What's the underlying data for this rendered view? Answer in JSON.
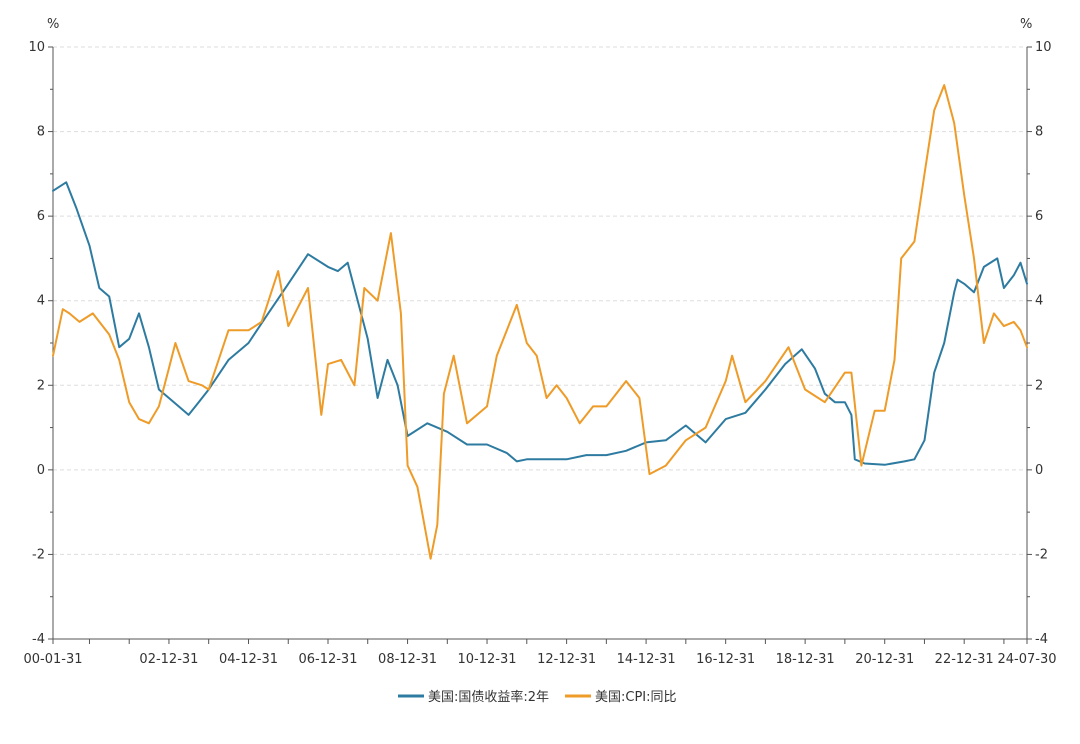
{
  "chart_data": {
    "type": "line",
    "title": "",
    "left_axis": {
      "unit": "%",
      "range": [
        -4,
        10
      ],
      "ticks": [
        "-4",
        "-2",
        "0",
        "2",
        "4",
        "6",
        "8",
        "10"
      ]
    },
    "right_axis": {
      "unit": "%",
      "range": [
        -4,
        10
      ],
      "ticks": [
        "-4",
        "-2",
        "0",
        "2",
        "4",
        "6",
        "8",
        "10"
      ]
    },
    "x_axis": {
      "type": "date",
      "range": [
        "2000-01-31",
        "2024-07-30"
      ],
      "tick_labels": [
        "00-01-31",
        "02-12-31",
        "04-12-31",
        "06-12-31",
        "08-12-31",
        "10-12-31",
        "12-12-31",
        "14-12-31",
        "16-12-31",
        "18-12-31",
        "20-12-31",
        "22-12-31",
        "24-07-30"
      ],
      "tick_dates": [
        "2000-01-31",
        "2002-12-31",
        "2004-12-31",
        "2006-12-31",
        "2008-12-31",
        "2010-12-31",
        "2012-12-31",
        "2014-12-31",
        "2016-12-31",
        "2018-12-31",
        "2020-12-31",
        "2022-12-31",
        "2024-07-30"
      ]
    },
    "grid": "horizontal dashed",
    "legend_position": "bottom-center",
    "series": [
      {
        "name": "美国:国债收益率:2年",
        "color": "#2e7ba1",
        "axis": "left",
        "x": [
          "2000-01-31",
          "2000-05-31",
          "2000-08-31",
          "2000-12-31",
          "2001-03-31",
          "2001-06-30",
          "2001-09-30",
          "2001-12-31",
          "2002-03-31",
          "2002-06-30",
          "2002-09-30",
          "2002-12-31",
          "2003-03-31",
          "2003-06-30",
          "2003-09-30",
          "2003-12-31",
          "2004-06-30",
          "2004-12-31",
          "2005-06-30",
          "2005-12-31",
          "2006-06-30",
          "2006-12-31",
          "2007-03-31",
          "2007-06-30",
          "2007-09-30",
          "2007-12-31",
          "2008-03-31",
          "2008-06-30",
          "2008-09-30",
          "2008-12-31",
          "2009-06-30",
          "2009-12-31",
          "2010-06-30",
          "2010-12-31",
          "2011-06-30",
          "2011-09-30",
          "2011-12-31",
          "2012-12-31",
          "2013-06-30",
          "2013-12-31",
          "2014-06-30",
          "2014-12-31",
          "2015-06-30",
          "2015-12-31",
          "2016-06-30",
          "2016-12-31",
          "2017-06-30",
          "2017-12-31",
          "2018-06-30",
          "2018-11-30",
          "2019-03-31",
          "2019-06-30",
          "2019-09-30",
          "2019-12-31",
          "2020-02-29",
          "2020-03-31",
          "2020-06-30",
          "2020-12-31",
          "2021-06-30",
          "2021-09-30",
          "2021-12-31",
          "2022-03-31",
          "2022-06-30",
          "2022-09-30",
          "2022-10-31",
          "2022-12-31",
          "2023-03-31",
          "2023-06-30",
          "2023-10-31",
          "2023-12-31",
          "2024-03-31",
          "2024-05-31",
          "2024-07-30"
        ],
        "values": [
          6.6,
          6.8,
          6.2,
          5.3,
          4.3,
          4.1,
          2.9,
          3.1,
          3.7,
          2.9,
          1.9,
          1.7,
          1.5,
          1.3,
          1.6,
          1.9,
          2.6,
          3.0,
          3.7,
          4.4,
          5.1,
          4.8,
          4.7,
          4.9,
          4.0,
          3.1,
          1.7,
          2.6,
          2.0,
          0.8,
          1.1,
          0.9,
          0.6,
          0.6,
          0.4,
          0.2,
          0.25,
          0.25,
          0.35,
          0.35,
          0.45,
          0.65,
          0.7,
          1.05,
          0.65,
          1.2,
          1.35,
          1.9,
          2.5,
          2.85,
          2.4,
          1.8,
          1.6,
          1.6,
          1.3,
          0.25,
          0.15,
          0.12,
          0.2,
          0.25,
          0.7,
          2.3,
          3.0,
          4.2,
          4.5,
          4.4,
          4.2,
          4.8,
          5.0,
          4.3,
          4.6,
          4.9,
          4.4
        ]
      },
      {
        "name": "美国:CPI:同比",
        "color": "#ee9b28",
        "axis": "right",
        "x": [
          "2000-01-31",
          "2000-04-30",
          "2000-06-30",
          "2000-09-30",
          "2001-01-31",
          "2001-06-30",
          "2001-09-30",
          "2001-12-31",
          "2002-03-31",
          "2002-06-30",
          "2002-09-30",
          "2002-12-31",
          "2003-02-28",
          "2003-06-30",
          "2003-10-31",
          "2003-12-31",
          "2004-06-30",
          "2004-12-31",
          "2005-04-30",
          "2005-09-30",
          "2005-12-31",
          "2006-06-30",
          "2006-10-31",
          "2006-12-31",
          "2007-04-30",
          "2007-08-31",
          "2007-11-30",
          "2008-03-31",
          "2008-07-31",
          "2008-10-31",
          "2008-12-31",
          "2009-03-31",
          "2009-07-31",
          "2009-09-30",
          "2009-11-30",
          "2010-02-28",
          "2010-06-30",
          "2010-12-31",
          "2011-03-31",
          "2011-09-30",
          "2011-12-31",
          "2012-03-31",
          "2012-06-30",
          "2012-09-30",
          "2012-12-31",
          "2013-04-30",
          "2013-08-31",
          "2013-12-31",
          "2014-06-30",
          "2014-10-31",
          "2015-01-31",
          "2015-06-30",
          "2015-12-31",
          "2016-06-30",
          "2016-12-31",
          "2017-02-28",
          "2017-06-30",
          "2017-12-31",
          "2018-07-31",
          "2018-12-31",
          "2019-06-30",
          "2019-12-31",
          "2020-02-29",
          "2020-05-31",
          "2020-09-30",
          "2020-12-31",
          "2021-03-31",
          "2021-05-31",
          "2021-09-30",
          "2021-12-31",
          "2022-03-31",
          "2022-06-30",
          "2022-09-30",
          "2022-12-31",
          "2023-03-31",
          "2023-06-30",
          "2023-09-30",
          "2023-12-31",
          "2024-03-31",
          "2024-05-31",
          "2024-07-30"
        ],
        "values": [
          2.7,
          3.8,
          3.7,
          3.5,
          3.7,
          3.2,
          2.6,
          1.6,
          1.2,
          1.1,
          1.5,
          2.4,
          3.0,
          2.1,
          2.0,
          1.9,
          3.3,
          3.3,
          3.5,
          4.7,
          3.4,
          4.3,
          1.3,
          2.5,
          2.6,
          2.0,
          4.3,
          4.0,
          5.6,
          3.7,
          0.1,
          -0.4,
          -2.1,
          -1.3,
          1.8,
          2.7,
          1.1,
          1.5,
          2.7,
          3.9,
          3.0,
          2.7,
          1.7,
          2.0,
          1.7,
          1.1,
          1.5,
          1.5,
          2.1,
          1.7,
          -0.1,
          0.1,
          0.7,
          1.0,
          2.1,
          2.7,
          1.6,
          2.1,
          2.9,
          1.9,
          1.6,
          2.3,
          2.3,
          0.1,
          1.4,
          1.4,
          2.6,
          5.0,
          5.4,
          7.0,
          8.5,
          9.1,
          8.2,
          6.5,
          5.0,
          3.0,
          3.7,
          3.4,
          3.5,
          3.3,
          2.9
        ]
      }
    ]
  }
}
